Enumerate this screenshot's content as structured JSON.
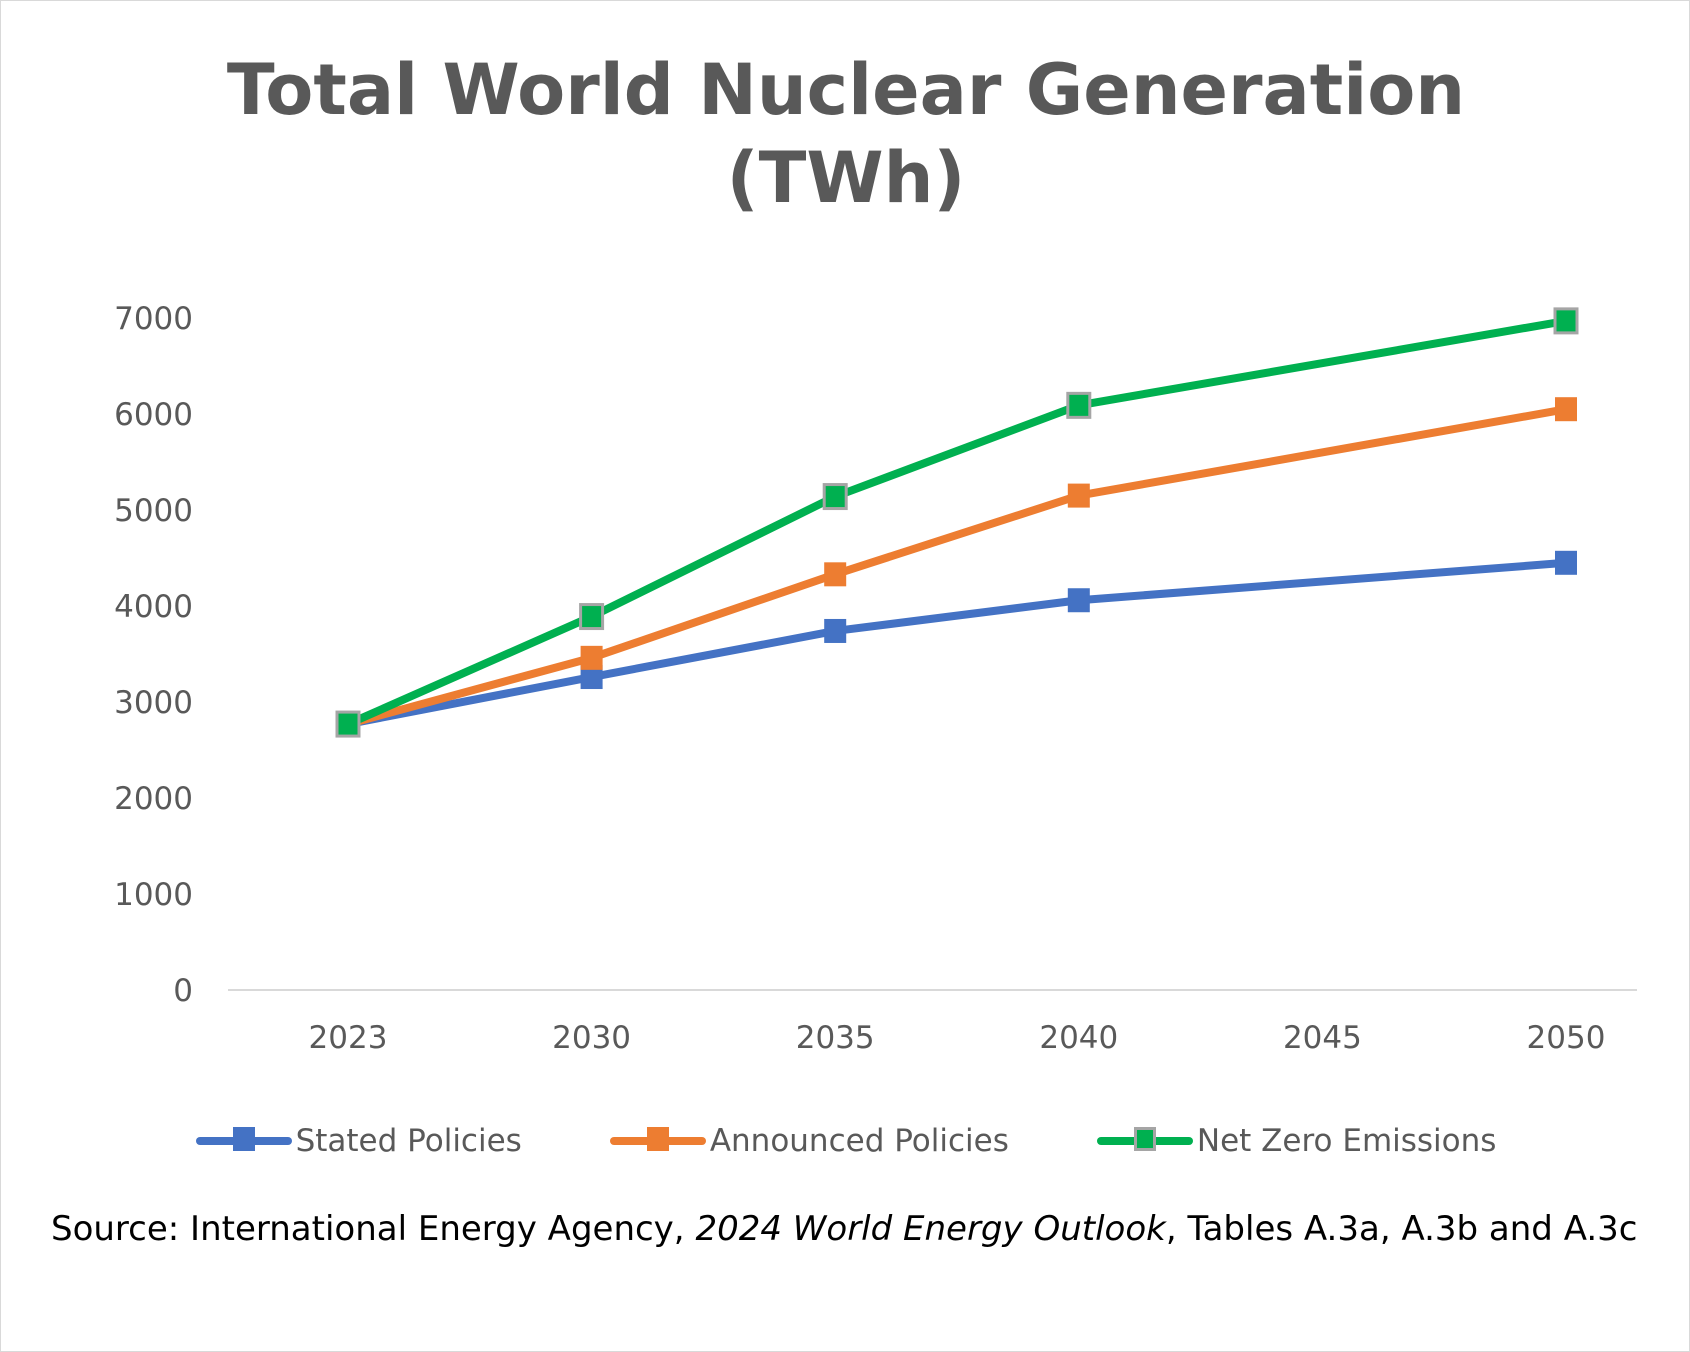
{
  "chart_data": {
    "type": "line",
    "title": "Total World Nuclear Generation",
    "title_line2": "(TWh)",
    "categories": [
      "2023",
      "2030",
      "2035",
      "2040",
      "2045",
      "2050"
    ],
    "ylim": [
      0,
      7000
    ],
    "yticks": [
      "0",
      "1000",
      "2000",
      "3000",
      "4000",
      "5000",
      "6000",
      "7000"
    ],
    "grid": false,
    "legend": "bottom",
    "series": [
      {
        "name": "Stated Policies",
        "color": "#4472C4",
        "values": [
          2770,
          3260,
          3740,
          4060,
          null,
          4450
        ]
      },
      {
        "name": "Announced Policies",
        "color": "#ED7D31",
        "values": [
          2770,
          3460,
          4330,
          5150,
          null,
          6050
        ]
      },
      {
        "name": "Net Zero Emissions",
        "color": "#00B050",
        "marker_border": "#A5A5A5",
        "values": [
          2770,
          3890,
          5140,
          6090,
          null,
          6970
        ]
      }
    ]
  },
  "source": {
    "prefix": "Source:  International Energy Agency, ",
    "italic": "2024 World Energy Outlook",
    "suffix": ", Tables A.3a, A.3b and A.3c"
  }
}
